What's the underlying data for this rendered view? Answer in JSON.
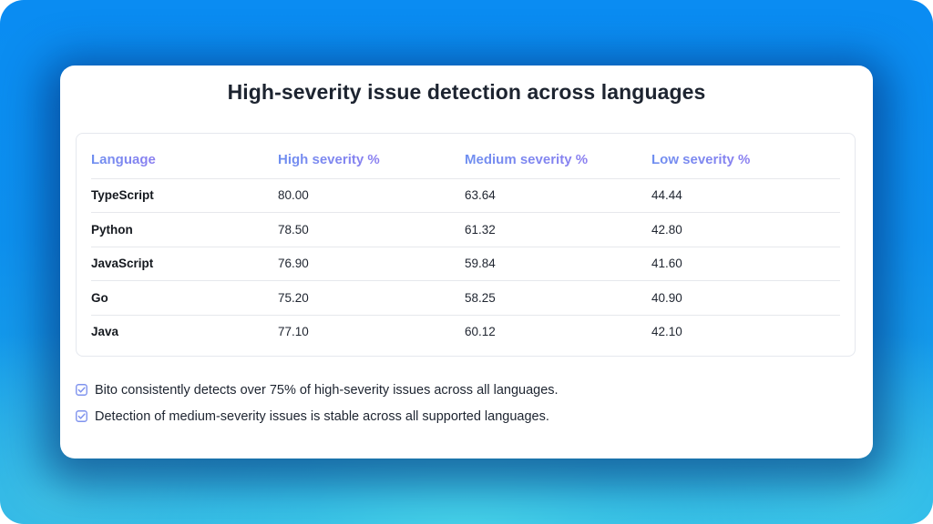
{
  "chart_data": {
    "type": "table",
    "title": "High-severity issue detection across languages",
    "columns": [
      "Language",
      "High severity %",
      "Medium severity %",
      "Low severity %"
    ],
    "rows": [
      {
        "language": "TypeScript",
        "high": "80.00",
        "medium": "63.64",
        "low": "44.44"
      },
      {
        "language": "Python",
        "high": "78.50",
        "medium": "61.32",
        "low": "42.80"
      },
      {
        "language": "JavaScript",
        "high": "76.90",
        "medium": "59.84",
        "low": "41.60"
      },
      {
        "language": "Go",
        "high": "75.20",
        "medium": "58.25",
        "low": "40.90"
      },
      {
        "language": "Java",
        "high": "77.10",
        "medium": "60.12",
        "low": "42.10"
      }
    ]
  },
  "notes": [
    {
      "icon": "checkbox-icon",
      "text": "Bito consistently detects over 75% of high-severity issues across all languages."
    },
    {
      "icon": "checkbox-icon",
      "text": "Detection of medium-severity issues is stable across all supported languages."
    }
  ],
  "colors": {
    "header_gradient_start": "#6f8ff0",
    "header_gradient_end": "#8b7ff0",
    "check_icon": "#7f93ee",
    "background_top": "#0a8cf2",
    "background_bottom": "#46d2e8"
  }
}
